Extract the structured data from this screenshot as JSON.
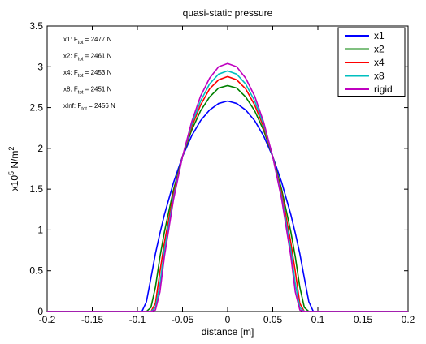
{
  "chart_data": {
    "type": "line",
    "title": "quasi-static pressure",
    "xlabel": "distance [m]",
    "ylabel": [
      {
        "text": "x10"
      },
      {
        "text": "5",
        "sup": true
      },
      {
        "text": " N/m"
      },
      {
        "text": "2",
        "sup": true
      }
    ],
    "x": [
      -0.2,
      -0.1,
      -0.095,
      -0.09,
      -0.085,
      -0.08,
      -0.075,
      -0.07,
      -0.06,
      -0.05,
      -0.04,
      -0.03,
      -0.02,
      -0.01,
      0,
      0.01,
      0.02,
      0.03,
      0.04,
      0.05,
      0.06,
      0.07,
      0.075,
      0.08,
      0.085,
      0.09,
      0.095,
      0.1,
      0.2
    ],
    "series": [
      {
        "name": "x1",
        "color": "#0000ff",
        "values": [
          0,
          0,
          0,
          0.12,
          0.41,
          0.71,
          0.96,
          1.19,
          1.58,
          1.9,
          2.15,
          2.34,
          2.47,
          2.55,
          2.58,
          2.55,
          2.47,
          2.34,
          2.15,
          1.9,
          1.58,
          1.19,
          0.96,
          0.71,
          0.41,
          0.12,
          0,
          0,
          0
        ]
      },
      {
        "name": "x2",
        "color": "#008000",
        "values": [
          0,
          0,
          0,
          0,
          0.05,
          0.3,
          0.67,
          0.98,
          1.49,
          1.9,
          2.22,
          2.46,
          2.63,
          2.74,
          2.77,
          2.74,
          2.63,
          2.46,
          2.22,
          1.9,
          1.49,
          0.98,
          0.67,
          0.3,
          0.05,
          0,
          0,
          0,
          0
        ]
      },
      {
        "name": "x4",
        "color": "#ff0000",
        "values": [
          0,
          0,
          0,
          0,
          0,
          0.1,
          0.49,
          0.85,
          1.44,
          1.9,
          2.26,
          2.53,
          2.73,
          2.84,
          2.88,
          2.84,
          2.73,
          2.53,
          2.26,
          1.9,
          1.44,
          0.85,
          0.49,
          0.1,
          0,
          0,
          0,
          0,
          0
        ]
      },
      {
        "name": "x8",
        "color": "#00bfbf",
        "values": [
          0,
          0,
          0,
          0,
          0,
          0.05,
          0.34,
          0.76,
          1.4,
          1.9,
          2.29,
          2.58,
          2.79,
          2.91,
          2.95,
          2.91,
          2.79,
          2.58,
          2.29,
          1.9,
          1.4,
          0.76,
          0.34,
          0.05,
          0,
          0,
          0,
          0,
          0
        ]
      },
      {
        "name": "rigid",
        "color": "#bf00bf",
        "values": [
          0,
          0,
          0,
          0,
          0,
          0.02,
          0.24,
          0.68,
          1.37,
          1.9,
          2.32,
          2.64,
          2.86,
          3.0,
          3.04,
          3.0,
          2.86,
          2.64,
          2.32,
          1.9,
          1.37,
          0.68,
          0.24,
          0.02,
          0,
          0,
          0,
          0,
          0
        ]
      }
    ],
    "annotations": [
      {
        "prefix": "x1: F",
        "subscript": "tot",
        "suffix": " = 2477 N"
      },
      {
        "prefix": "x2: F",
        "subscript": "tot",
        "suffix": " = 2461 N"
      },
      {
        "prefix": "x4: F",
        "subscript": "tot",
        "suffix": " = 2453 N"
      },
      {
        "prefix": "x8: F",
        "subscript": "tot",
        "suffix": " = 2451 N"
      },
      {
        "prefix": "xInf: F",
        "subscript": "tot",
        "suffix": " = 2456 N"
      }
    ],
    "xlim": [
      -0.2,
      0.2
    ],
    "xticks": [
      -0.2,
      -0.15,
      -0.1,
      -0.05,
      0,
      0.05,
      0.1,
      0.15,
      0.2
    ],
    "ylim": [
      0,
      3.5
    ],
    "yticks": [
      0,
      0.5,
      1,
      1.5,
      2,
      2.5,
      3,
      3.5
    ],
    "grid": false,
    "legend": "top-right"
  }
}
